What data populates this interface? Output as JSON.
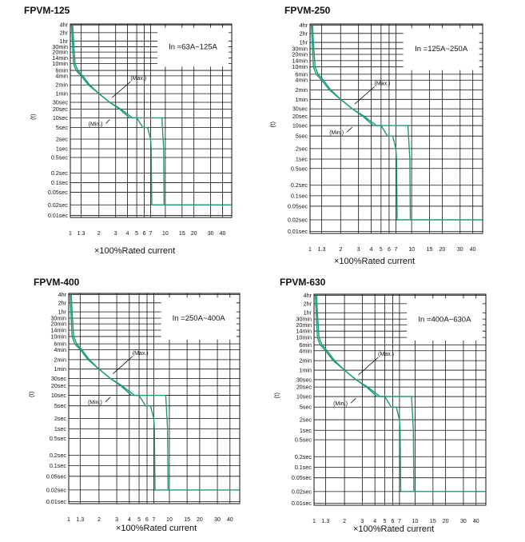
{
  "colors": {
    "curve": "#1a9a7a",
    "grid": "#111111",
    "background": "#ffffff"
  },
  "chart_data": [
    {
      "type": "line",
      "title": "FPVM-125",
      "rating_label": "In =63A~125A",
      "ylabel": "(t)",
      "xlabel": "×100%Rated current",
      "y_tick_labels": [
        "4hr",
        "2hr",
        "1hr",
        "30min",
        "20min",
        "14min",
        "10min",
        "6min",
        "4min",
        "2min",
        "1min",
        "30sec",
        "20sec",
        "10sec",
        "5sec",
        "2sec",
        "1sec",
        "0.5sec",
        "0.2sec",
        "0.1sec",
        "0.05sec",
        "0.02sec",
        "0.01sec"
      ],
      "x_tick_labels": [
        "1",
        "1.3",
        "2",
        "3",
        "4",
        "5",
        "6",
        "7",
        "10",
        "15",
        "20",
        "30",
        "40"
      ],
      "annotations": [
        "(Max.)",
        "(Min.)"
      ],
      "xlim": [
        1,
        50
      ],
      "series": [
        {
          "name": "Max.",
          "x": [
            1.06,
            1.08,
            1.12,
            1.2,
            1.35,
            1.6,
            2.0,
            2.6,
            3.4,
            4.5,
            5.5,
            6.5,
            7.5,
            9.2,
            9.6,
            9.7,
            10,
            11,
            15,
            20,
            30,
            50
          ],
          "y": [
            "4hr",
            "1hr",
            "10min",
            "6min",
            "4min",
            "2min",
            "1min",
            "30sec",
            "20sec",
            "10sec",
            "10sec",
            "10sec",
            "10sec",
            "10sec",
            "1sec",
            "0.02sec",
            "0.02sec",
            "0.02sec",
            "0.02sec",
            "0.02sec",
            "0.02sec",
            "0.02sec"
          ]
        },
        {
          "name": "Min.",
          "x": [
            1.03,
            1.05,
            1.08,
            1.15,
            1.3,
            1.55,
            2.0,
            2.6,
            3.3,
            4.2,
            5.0,
            5.8,
            6.5,
            7.0,
            7.1,
            7.2,
            7.6,
            8.3,
            9.5
          ],
          "y": [
            "4hr",
            "1hr",
            "10min",
            "6min",
            "4min",
            "2min",
            "1min",
            "30sec",
            "20sec",
            "10sec",
            "10sec",
            "5sec",
            "5sec",
            "2sec",
            "1sec",
            "0.02sec",
            "0.02sec",
            "0.02sec",
            "0.02sec"
          ]
        }
      ]
    },
    {
      "type": "line",
      "title": "FPVM-250",
      "rating_label": "In =125A~250A",
      "ylabel": "(t)",
      "xlabel": "×100%Rated current",
      "y_tick_labels": [
        "4hr",
        "2hr",
        "1hr",
        "30min",
        "20min",
        "14min",
        "10min",
        "6min",
        "4min",
        "2min",
        "1min",
        "30sec",
        "20sec",
        "10sec",
        "5sec",
        "2sec",
        "1sec",
        "0.5sec",
        "0.2sec",
        "0.1sec",
        "0.05sec",
        "0.02sec",
        "0.01sec"
      ],
      "x_tick_labels": [
        "1",
        "1.3",
        "2",
        "3",
        "4",
        "5",
        "6",
        "7",
        "10",
        "15",
        "20",
        "30",
        "40"
      ],
      "annotations": [
        "(Max.)",
        "(Min.)"
      ],
      "xlim": [
        1,
        50
      ],
      "series": [
        {
          "name": "Max.",
          "x": [
            1.06,
            1.08,
            1.12,
            1.2,
            1.35,
            1.6,
            2.0,
            2.6,
            3.4,
            4.5,
            5.5,
            6.5,
            7.5,
            9.2,
            9.6,
            9.7,
            10,
            11,
            15,
            20,
            30,
            50
          ],
          "y": [
            "4hr",
            "1hr",
            "10min",
            "6min",
            "4min",
            "2min",
            "1min",
            "30sec",
            "20sec",
            "10sec",
            "10sec",
            "10sec",
            "10sec",
            "10sec",
            "1sec",
            "0.02sec",
            "0.02sec",
            "0.02sec",
            "0.02sec",
            "0.02sec",
            "0.02sec",
            "0.02sec"
          ]
        },
        {
          "name": "Min.",
          "x": [
            1.03,
            1.05,
            1.08,
            1.15,
            1.3,
            1.55,
            2.0,
            2.6,
            3.3,
            4.2,
            5.0,
            5.8,
            6.5,
            7.0,
            7.1,
            7.2,
            7.6,
            8.3,
            9.5
          ],
          "y": [
            "4hr",
            "1hr",
            "10min",
            "6min",
            "4min",
            "2min",
            "1min",
            "30sec",
            "20sec",
            "10sec",
            "10sec",
            "5sec",
            "5sec",
            "2sec",
            "1sec",
            "0.02sec",
            "0.02sec",
            "0.02sec",
            "0.02sec"
          ]
        }
      ]
    },
    {
      "type": "line",
      "title": "FPVM-400",
      "rating_label": "In =250A~400A",
      "ylabel": "(t)",
      "xlabel": "×100%Rated current",
      "y_tick_labels": [
        "4hr",
        "2hr",
        "1hr",
        "30min",
        "20min",
        "14min",
        "10min",
        "6min",
        "4min",
        "2min",
        "1min",
        "30sec",
        "20sec",
        "10sec",
        "5sec",
        "2sec",
        "1sec",
        "0.5sec",
        "0.2sec",
        "0.1sec",
        "0.05sec",
        "0.02sec",
        "0.01sec"
      ],
      "x_tick_labels": [
        "1",
        "1.3",
        "2",
        "3",
        "4",
        "5",
        "6",
        "7",
        "10",
        "15",
        "20",
        "30",
        "40"
      ],
      "annotations": [
        "(Max.)",
        "(Min.)"
      ],
      "xlim": [
        1,
        50
      ],
      "series": [
        {
          "name": "Max.",
          "x": [
            1.06,
            1.08,
            1.12,
            1.2,
            1.35,
            1.6,
            2.0,
            2.6,
            3.4,
            4.5,
            5.5,
            6.5,
            7.5,
            9.2,
            9.6,
            9.7,
            10,
            11,
            15,
            20,
            30,
            50
          ],
          "y": [
            "4hr",
            "1hr",
            "10min",
            "6min",
            "4min",
            "2min",
            "1min",
            "30sec",
            "20sec",
            "10sec",
            "10sec",
            "10sec",
            "10sec",
            "10sec",
            "1sec",
            "0.02sec",
            "0.02sec",
            "0.02sec",
            "0.02sec",
            "0.02sec",
            "0.02sec",
            "0.02sec"
          ]
        },
        {
          "name": "Min.",
          "x": [
            1.03,
            1.05,
            1.08,
            1.15,
            1.3,
            1.55,
            2.0,
            2.6,
            3.3,
            4.2,
            5.0,
            5.8,
            6.5,
            7.0,
            7.1,
            7.2,
            7.6,
            8.3,
            9.5
          ],
          "y": [
            "4hr",
            "1hr",
            "10min",
            "6min",
            "4min",
            "2min",
            "1min",
            "30sec",
            "20sec",
            "10sec",
            "10sec",
            "5sec",
            "5sec",
            "2sec",
            "1sec",
            "0.02sec",
            "0.02sec",
            "0.02sec",
            "0.02sec"
          ]
        }
      ]
    },
    {
      "type": "line",
      "title": "FPVM-630",
      "rating_label": "In =400A~630A",
      "ylabel": "(t)",
      "xlabel": "×100%Rated current",
      "y_tick_labels": [
        "4hr",
        "2hr",
        "1hr",
        "30min",
        "20min",
        "14min",
        "10min",
        "6min",
        "4min",
        "2min",
        "1min",
        "30sec",
        "20sec",
        "10sec",
        "5sec",
        "2sec",
        "1sec",
        "0.5sec",
        "0.2sec",
        "0.1sec",
        "0.05sec",
        "0.02sec",
        "0.01sec"
      ],
      "x_tick_labels": [
        "1",
        "1.3",
        "2",
        "3",
        "4",
        "5",
        "6",
        "7",
        "10",
        "15",
        "20",
        "30",
        "40"
      ],
      "annotations": [
        "(Max.)",
        "(Min.)"
      ],
      "xlim": [
        1,
        50
      ],
      "series": [
        {
          "name": "Max.",
          "x": [
            1.06,
            1.08,
            1.12,
            1.2,
            1.35,
            1.6,
            2.0,
            2.6,
            3.4,
            4.5,
            5.5,
            6.5,
            7.5,
            9.2,
            9.6,
            9.7,
            10,
            11,
            15,
            20,
            30,
            50
          ],
          "y": [
            "4hr",
            "1hr",
            "10min",
            "6min",
            "4min",
            "2min",
            "1min",
            "30sec",
            "20sec",
            "10sec",
            "10sec",
            "10sec",
            "10sec",
            "10sec",
            "1sec",
            "0.02sec",
            "0.02sec",
            "0.02sec",
            "0.02sec",
            "0.02sec",
            "0.02sec",
            "0.02sec"
          ]
        },
        {
          "name": "Min.",
          "x": [
            1.03,
            1.05,
            1.08,
            1.15,
            1.3,
            1.55,
            2.0,
            2.6,
            3.3,
            4.2,
            5.0,
            5.8,
            6.5,
            7.0,
            7.1,
            7.2,
            7.6,
            8.3,
            9.5
          ],
          "y": [
            "4hr",
            "1hr",
            "10min",
            "6min",
            "4min",
            "2min",
            "1min",
            "30sec",
            "20sec",
            "10sec",
            "10sec",
            "5sec",
            "5sec",
            "2sec",
            "1sec",
            "0.02sec",
            "0.02sec",
            "0.02sec",
            "0.02sec"
          ]
        }
      ]
    }
  ]
}
